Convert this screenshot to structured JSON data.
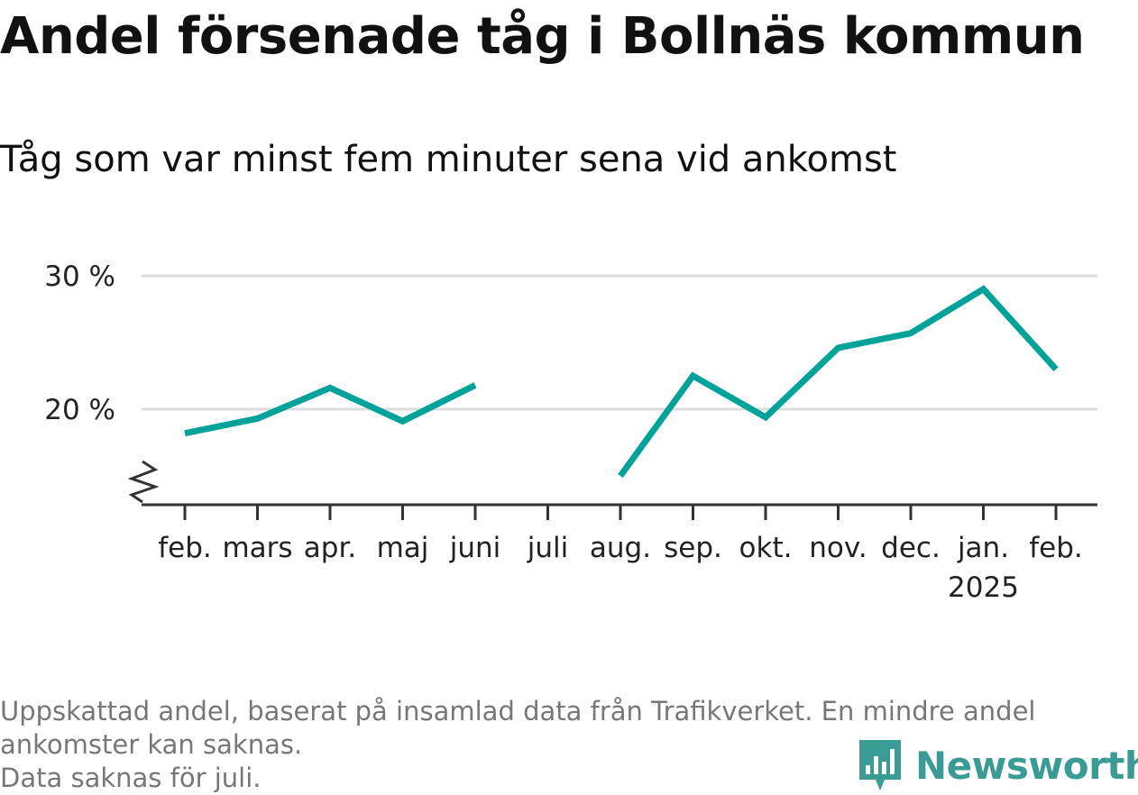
{
  "header": {
    "title": "Andel försenade tåg i Bollnäs kommun",
    "subtitle": "Tåg som var minst fem minuter sena vid ankomst"
  },
  "chart_data": {
    "type": "line",
    "title": "Andel försenade tåg i Bollnäs kommun",
    "subtitle": "Tåg som var minst fem minuter sena vid ankomst",
    "xlabel": "",
    "ylabel": "",
    "categories": [
      "feb.",
      "mars",
      "apr.",
      "maj",
      "juni",
      "juli",
      "aug.",
      "sep.",
      "okt.",
      "nov.",
      "dec.",
      "jan.",
      "feb."
    ],
    "year_labels": [
      {
        "category_index": 11,
        "label": "2025"
      }
    ],
    "series": [
      {
        "values": [
          18.2,
          19.3,
          21.6,
          19.1,
          21.8,
          null,
          15.0,
          22.5,
          19.4,
          24.6,
          25.7,
          29.0,
          23.0
        ]
      }
    ],
    "ylim": [
      13,
      30
    ],
    "yticks": [
      20,
      30
    ],
    "ytick_labels": [
      "20 %",
      "30 %"
    ],
    "axis_break": true,
    "grid": true,
    "line_color": "#00a29a",
    "grid_color": "#dddddd",
    "axis_color": "#333333"
  },
  "footer": {
    "note_line1": "Uppskattad andel, baserat på insamlad data från Trafikverket. En mindre andel",
    "note_line2": "ankomster kan saknas.",
    "note_line3": "Data saknas för juli.",
    "logo_text": "Newsworthy",
    "logo_icon": "bar-chart-icon",
    "brand_color": "#3a9b94"
  }
}
